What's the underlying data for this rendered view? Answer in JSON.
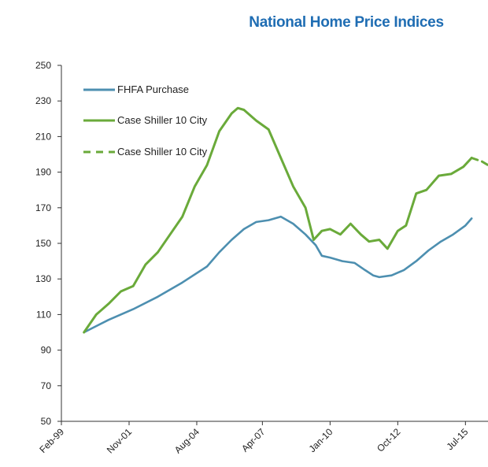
{
  "chart_data": {
    "type": "line",
    "title": "National Home Price Indices",
    "xlabel": "",
    "ylabel": "",
    "ylim": [
      50,
      250
    ],
    "y_ticks": [
      50,
      70,
      90,
      110,
      130,
      150,
      170,
      190,
      210,
      230,
      250
    ],
    "x_tick_labels": [
      "Feb-99",
      "Nov-01",
      "Aug-04",
      "Apr-07",
      "Jan-10",
      "Oct-12",
      "Jul-15"
    ],
    "x_range": [
      "1999-02",
      "2016-06"
    ],
    "grid": false,
    "legend_position": "top-left",
    "series": [
      {
        "name": "FHFA Purchase",
        "color": "#4d8fb0",
        "style": "solid",
        "x": [
          "2000-01",
          "2001-01",
          "2002-01",
          "2003-01",
          "2004-01",
          "2005-01",
          "2005-07",
          "2006-01",
          "2006-07",
          "2007-01",
          "2007-07",
          "2008-01",
          "2008-07",
          "2009-01",
          "2009-06",
          "2009-09",
          "2010-01",
          "2010-07",
          "2011-01",
          "2011-06",
          "2011-10",
          "2012-01",
          "2012-07",
          "2013-01",
          "2013-07",
          "2014-01",
          "2014-07",
          "2015-01",
          "2015-07",
          "2015-10"
        ],
        "values": [
          100,
          107,
          113,
          120,
          128,
          137,
          145,
          152,
          158,
          162,
          163,
          165,
          161,
          155,
          149,
          143,
          142,
          140,
          139,
          135,
          132,
          131,
          132,
          135,
          140,
          146,
          151,
          155,
          160,
          164
        ]
      },
      {
        "name": "Case Shiller 10 City",
        "color": "#6aaa3a",
        "style": "solid",
        "x": [
          "2000-01",
          "2000-07",
          "2001-01",
          "2001-07",
          "2002-01",
          "2002-07",
          "2003-01",
          "2003-07",
          "2004-01",
          "2004-07",
          "2005-01",
          "2005-07",
          "2006-01",
          "2006-04",
          "2006-07",
          "2007-01",
          "2007-07",
          "2008-01",
          "2008-07",
          "2009-01",
          "2009-05",
          "2009-09",
          "2010-01",
          "2010-06",
          "2010-11",
          "2011-04",
          "2011-08",
          "2012-01",
          "2012-05",
          "2012-10",
          "2013-02",
          "2013-07",
          "2013-12",
          "2014-06",
          "2014-12",
          "2015-06",
          "2015-10"
        ],
        "values": [
          100,
          110,
          116,
          123,
          126,
          138,
          145,
          155,
          165,
          182,
          194,
          213,
          223,
          226,
          225,
          219,
          214,
          198,
          182,
          170,
          152,
          157,
          158,
          155,
          161,
          155,
          151,
          152,
          147,
          157,
          160,
          178,
          180,
          188,
          189,
          193,
          198
        ]
      },
      {
        "name": "Case Shiller 10 City",
        "color": "#6aaa3a",
        "style": "dashed",
        "x": [
          "2015-10",
          "2016-03",
          "2016-06"
        ],
        "values": [
          198,
          196,
          194
        ]
      }
    ]
  }
}
